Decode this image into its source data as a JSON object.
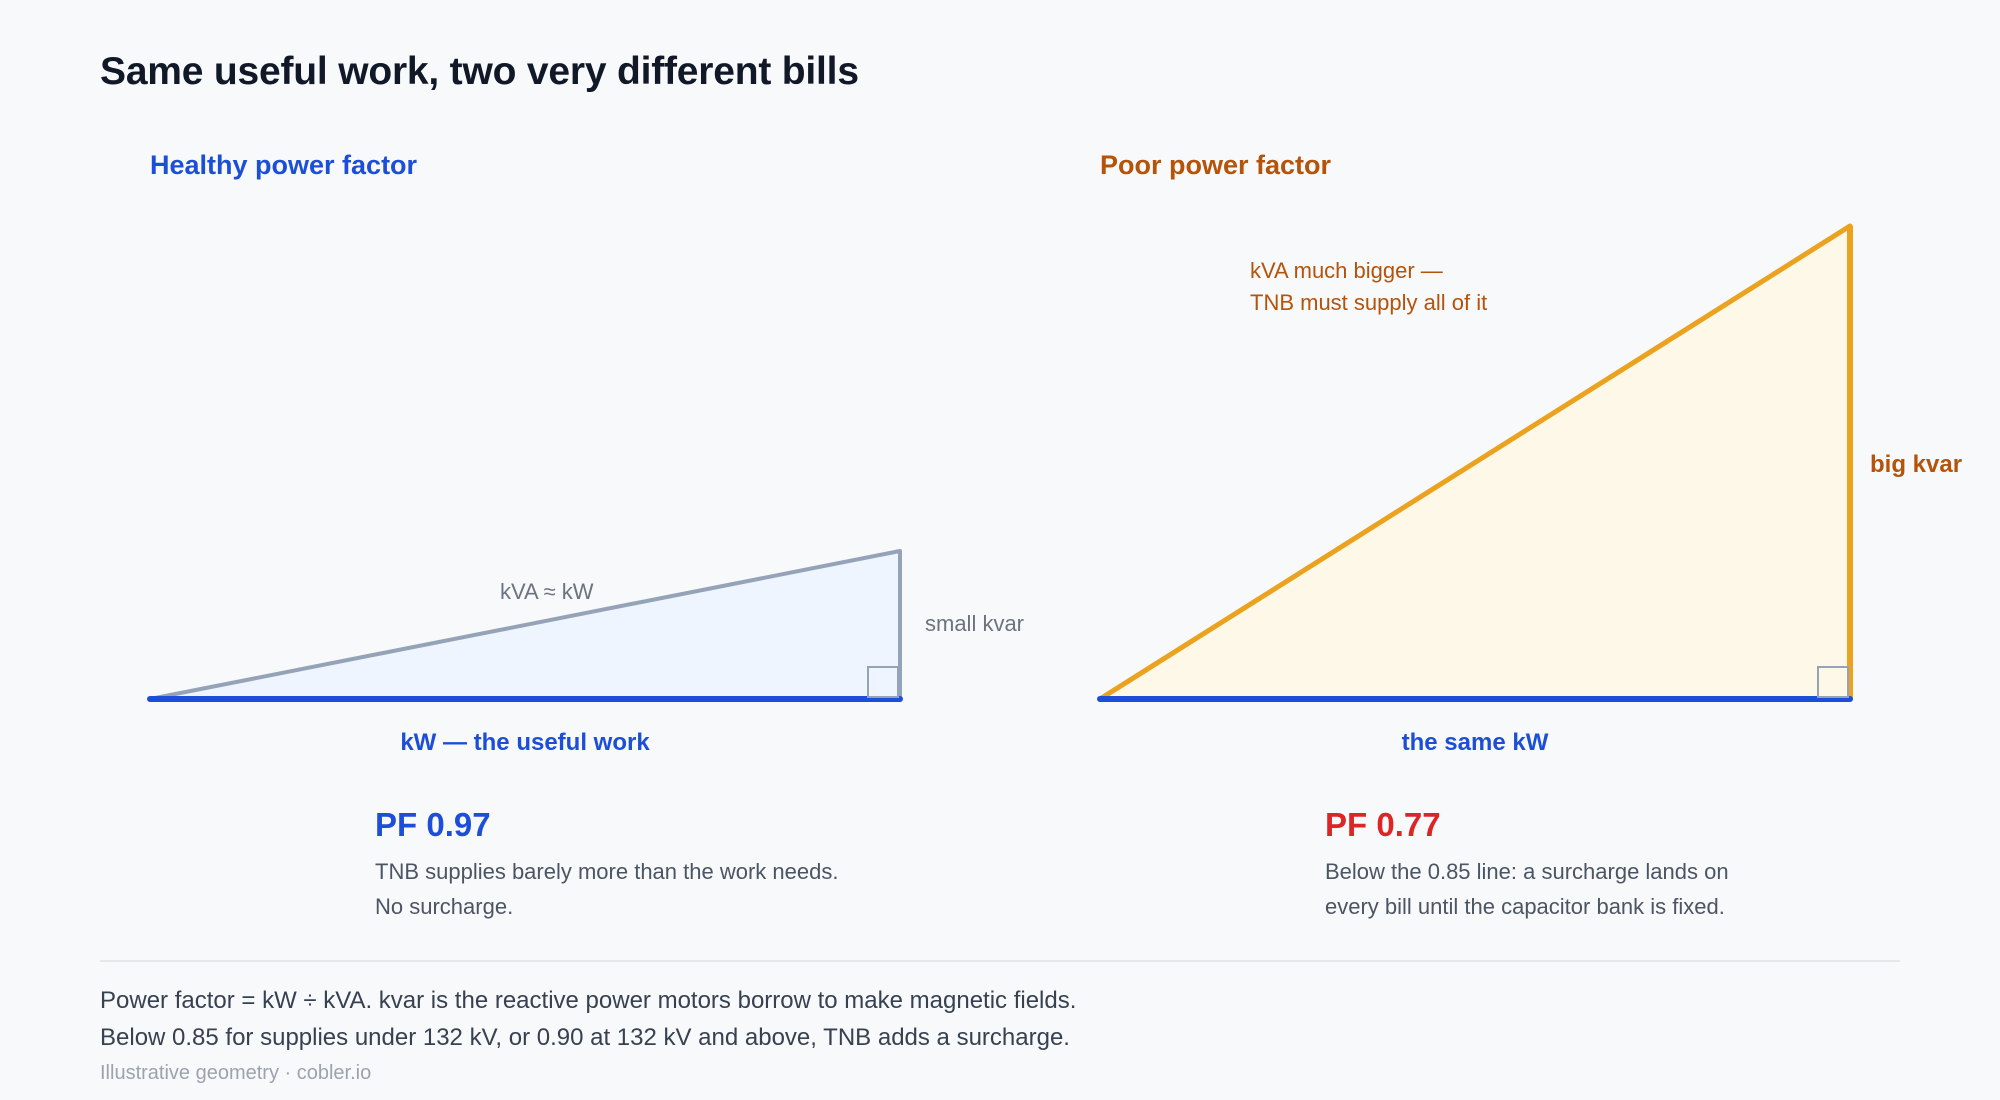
{
  "title": "Same useful work, two very different bills",
  "colors": {
    "healthy_accent": "#1d4ed8",
    "healthy_line": "#94a3b8",
    "healthy_fill": "#eff5fe",
    "poor_accent": "#b45309",
    "poor_line": "#eba21e",
    "poor_fill": "#fef8e9",
    "pf_poor": "#dc2626",
    "kw_line": "#1d4ed8"
  },
  "panels": [
    {
      "id": "healthy",
      "heading": "Healthy power factor",
      "hypotenuse_label": "kVA ≈ kW",
      "kvar_label": "small kvar",
      "kw_label": "kW — the useful work",
      "pf": "PF 0.97",
      "description_lines": [
        "TNB supplies barely more than the work needs.",
        "No surcharge."
      ]
    },
    {
      "id": "poor",
      "heading": "Poor power factor",
      "hypotenuse_label_lines": [
        "kVA much bigger —",
        "TNB must supply all of it"
      ],
      "kvar_label": "big kvar",
      "kw_label": "the same kW",
      "pf": "PF 0.77",
      "description_lines": [
        "Below the 0.85 line: a surcharge lands on",
        "every bill until the capacitor bank is fixed."
      ]
    }
  ],
  "footer_lines": [
    "Power factor = kW ÷ kVA. kvar is the reactive power motors borrow to make magnetic fields.",
    "Below 0.85 for supplies under 132 kV, or 0.90 at 132 kV and above, TNB adds a surcharge."
  ],
  "credit": "Illustrative geometry · cobler.io"
}
